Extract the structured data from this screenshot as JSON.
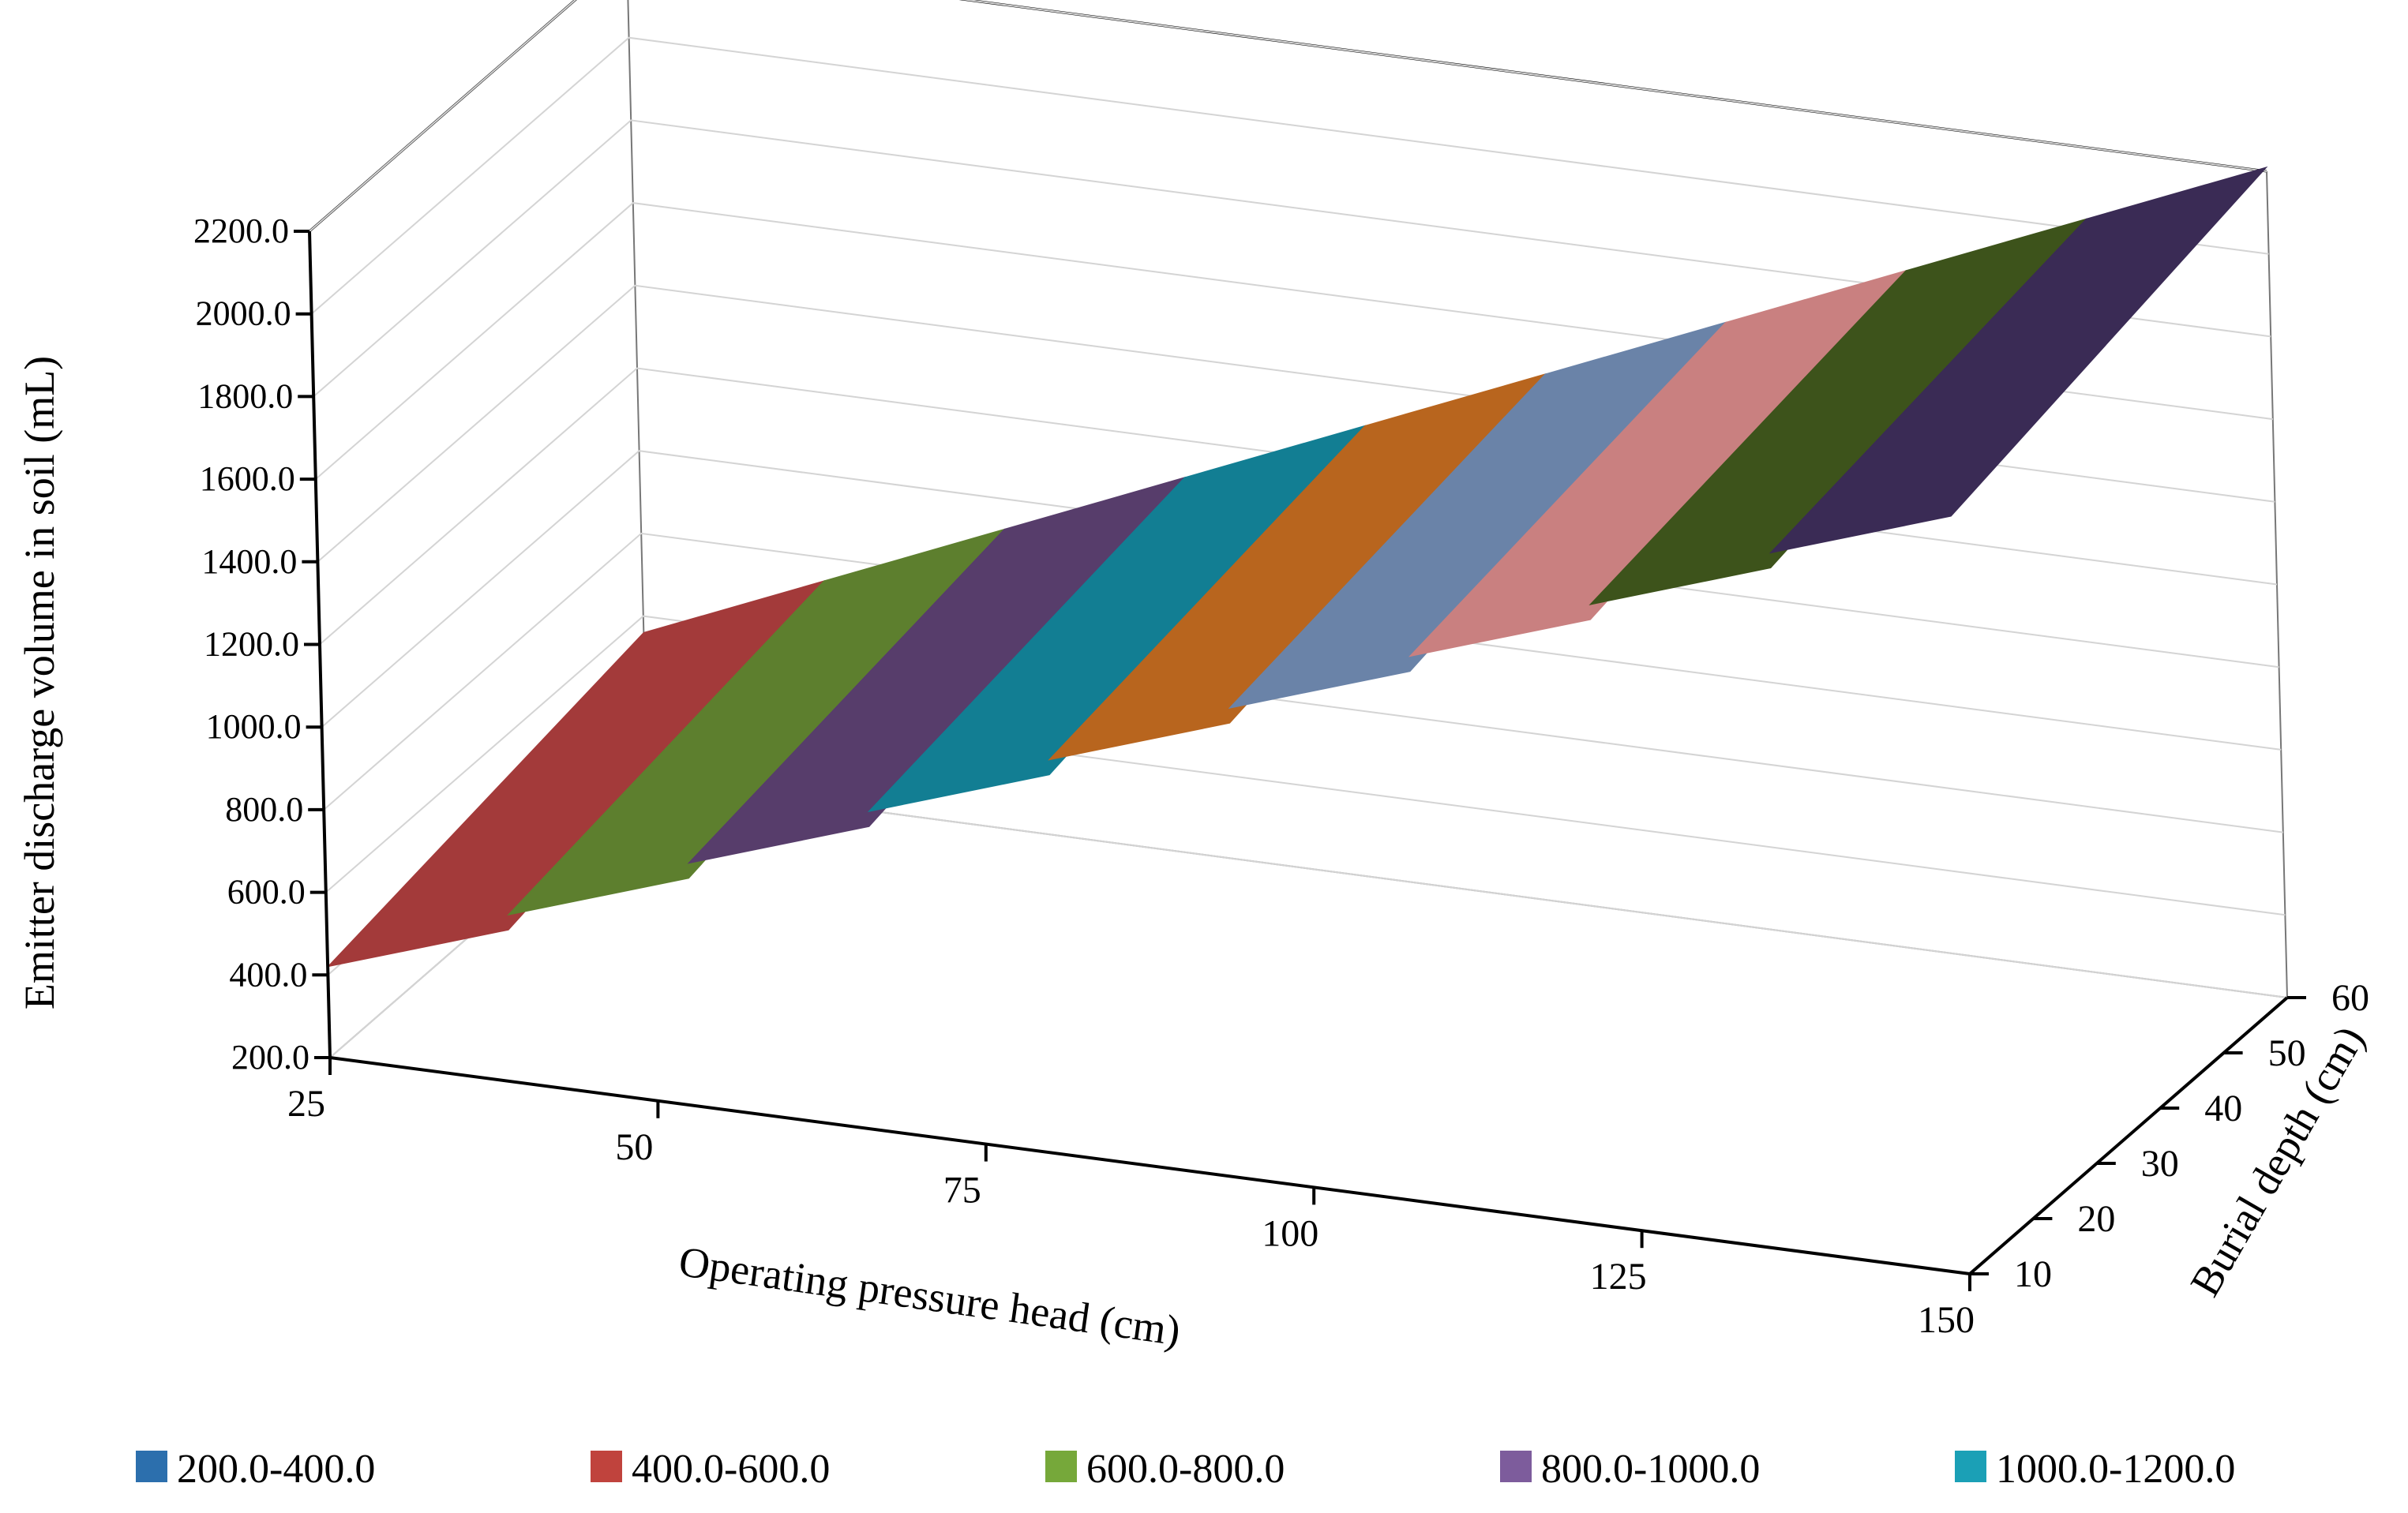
{
  "chart_data": {
    "type": "surface",
    "title": "",
    "xlabel": "Operating pressure head (cm)",
    "ylabel": "Burial depth (cm)",
    "zlabel": "Emitter discharge volume in soil (mL)",
    "x": [
      25,
      50,
      75,
      100,
      125,
      150
    ],
    "y": [
      10,
      20,
      30,
      40,
      50,
      60
    ],
    "z_ticks": [
      "200.0",
      "400.0",
      "600.0",
      "800.0",
      "1000.0",
      "1200.0",
      "1400.0",
      "1600.0",
      "1800.0",
      "2000.0",
      "2200.0"
    ],
    "zlim": [
      200,
      2200
    ],
    "x_tick_labels": [
      "25",
      "50",
      "75",
      "100",
      "125",
      "150"
    ],
    "y_tick_labels": [
      "10",
      "20",
      "30",
      "40",
      "50",
      "60"
    ],
    "surface_bands": [
      {
        "range": "400.0-600.0",
        "color": "#a33a3a"
      },
      {
        "range": "600.0-800.0",
        "color": "#5d7f2e"
      },
      {
        "range": "800.0-1000.0",
        "color": "#573d6b"
      },
      {
        "range": "1000.0-1200.0",
        "color": "#127e93"
      },
      {
        "range": "1200.0-1400.0",
        "color": "#b8651e"
      },
      {
        "range": "1400.0-1600.0",
        "color": "#6a83a8"
      },
      {
        "range": "1600.0-1800.0",
        "color": "#c98080"
      },
      {
        "range": "1800.0-2000.0",
        "color": "#3d531b"
      },
      {
        "range": "2000.0-2200.0",
        "color": "#3a2b55"
      }
    ],
    "legend": [
      {
        "label": "200.0-400.0",
        "color": "#2c6fad"
      },
      {
        "label": "400.0-600.0",
        "color": "#c0433d"
      },
      {
        "label": "600.0-800.0",
        "color": "#76a83a"
      },
      {
        "label": "800.0-1000.0",
        "color": "#7d5c9c"
      },
      {
        "label": "1000.0-1200.0",
        "color": "#1ba0b6"
      }
    ],
    "legend_position": "bottom"
  }
}
